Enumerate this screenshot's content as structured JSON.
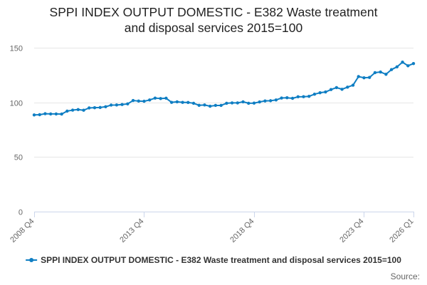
{
  "title_line1": "SPPI INDEX OUTPUT DOMESTIC - E382 Waste treatment",
  "title_line2": "and disposal services 2015=100",
  "legend_label": "SPPI INDEX OUTPUT DOMESTIC - E382 Waste treatment and disposal services 2015=100",
  "source_label": "Source:",
  "colors": {
    "series": "#0f7ec3",
    "grid": "#e6e6e6",
    "axis": "#ccd6eb",
    "tick_text": "#666666"
  },
  "chart_data": {
    "type": "line",
    "title": "SPPI INDEX OUTPUT DOMESTIC - E382 Waste treatment and disposal services 2015=100",
    "xlabel": "",
    "ylabel": "",
    "ylim": [
      0,
      150
    ],
    "yticks": [
      0,
      50,
      100,
      150
    ],
    "grid": true,
    "legend": "bottom",
    "x_tick_labels": [
      "2008 Q4",
      "2013 Q4",
      "2018 Q4",
      "2023 Q4",
      "2026 Q1"
    ],
    "x_tick_values": [
      "2008 Q4",
      "2013 Q4",
      "2018 Q4",
      "2023 Q4",
      "2026 Q1"
    ],
    "x": [
      "2008 Q4",
      "2009 Q1",
      "2009 Q2",
      "2009 Q3",
      "2009 Q4",
      "2010 Q1",
      "2010 Q2",
      "2010 Q3",
      "2010 Q4",
      "2011 Q1",
      "2011 Q2",
      "2011 Q3",
      "2011 Q4",
      "2012 Q1",
      "2012 Q2",
      "2012 Q3",
      "2012 Q4",
      "2013 Q1",
      "2013 Q2",
      "2013 Q3",
      "2013 Q4",
      "2014 Q1",
      "2014 Q2",
      "2014 Q3",
      "2014 Q4",
      "2015 Q1",
      "2015 Q2",
      "2015 Q3",
      "2015 Q4",
      "2016 Q1",
      "2016 Q2",
      "2016 Q3",
      "2016 Q4",
      "2017 Q1",
      "2017 Q2",
      "2017 Q3",
      "2017 Q4",
      "2018 Q1",
      "2018 Q2",
      "2018 Q3",
      "2018 Q4",
      "2019 Q1",
      "2019 Q2",
      "2019 Q3",
      "2019 Q4",
      "2020 Q1",
      "2020 Q2",
      "2020 Q3",
      "2020 Q4",
      "2021 Q1",
      "2021 Q2",
      "2021 Q3",
      "2021 Q4",
      "2022 Q1",
      "2022 Q2",
      "2022 Q3",
      "2022 Q4",
      "2023 Q1",
      "2023 Q2",
      "2023 Q3",
      "2023 Q4",
      "2024 Q1",
      "2024 Q2",
      "2024 Q3",
      "2024 Q4",
      "2025 Q1",
      "2025 Q2",
      "2025 Q3",
      "2025 Q4",
      "2026 Q1"
    ],
    "series": [
      {
        "name": "SPPI INDEX OUTPUT DOMESTIC - E382 Waste treatment and disposal services 2015=100",
        "values": [
          88.5,
          88.7,
          89.6,
          89.4,
          89.4,
          89.3,
          92.0,
          92.9,
          93.4,
          92.8,
          94.9,
          95.1,
          95.3,
          96.0,
          97.5,
          97.6,
          98.0,
          98.6,
          101.7,
          101.2,
          101.0,
          102.2,
          103.9,
          103.5,
          103.8,
          100.0,
          100.5,
          100.0,
          99.9,
          99.2,
          97.3,
          97.6,
          96.5,
          97.2,
          97.2,
          99.2,
          99.5,
          99.5,
          100.5,
          99.2,
          99.3,
          100.4,
          101.3,
          101.5,
          102.2,
          104.0,
          104.2,
          103.7,
          105.1,
          105.2,
          105.5,
          107.5,
          108.8,
          109.5,
          111.7,
          113.5,
          112.0,
          113.9,
          115.7,
          123.6,
          122.5,
          122.8,
          127.2,
          127.8,
          125.7,
          130.0,
          132.5,
          136.8,
          133.5,
          135.5
        ]
      }
    ]
  }
}
